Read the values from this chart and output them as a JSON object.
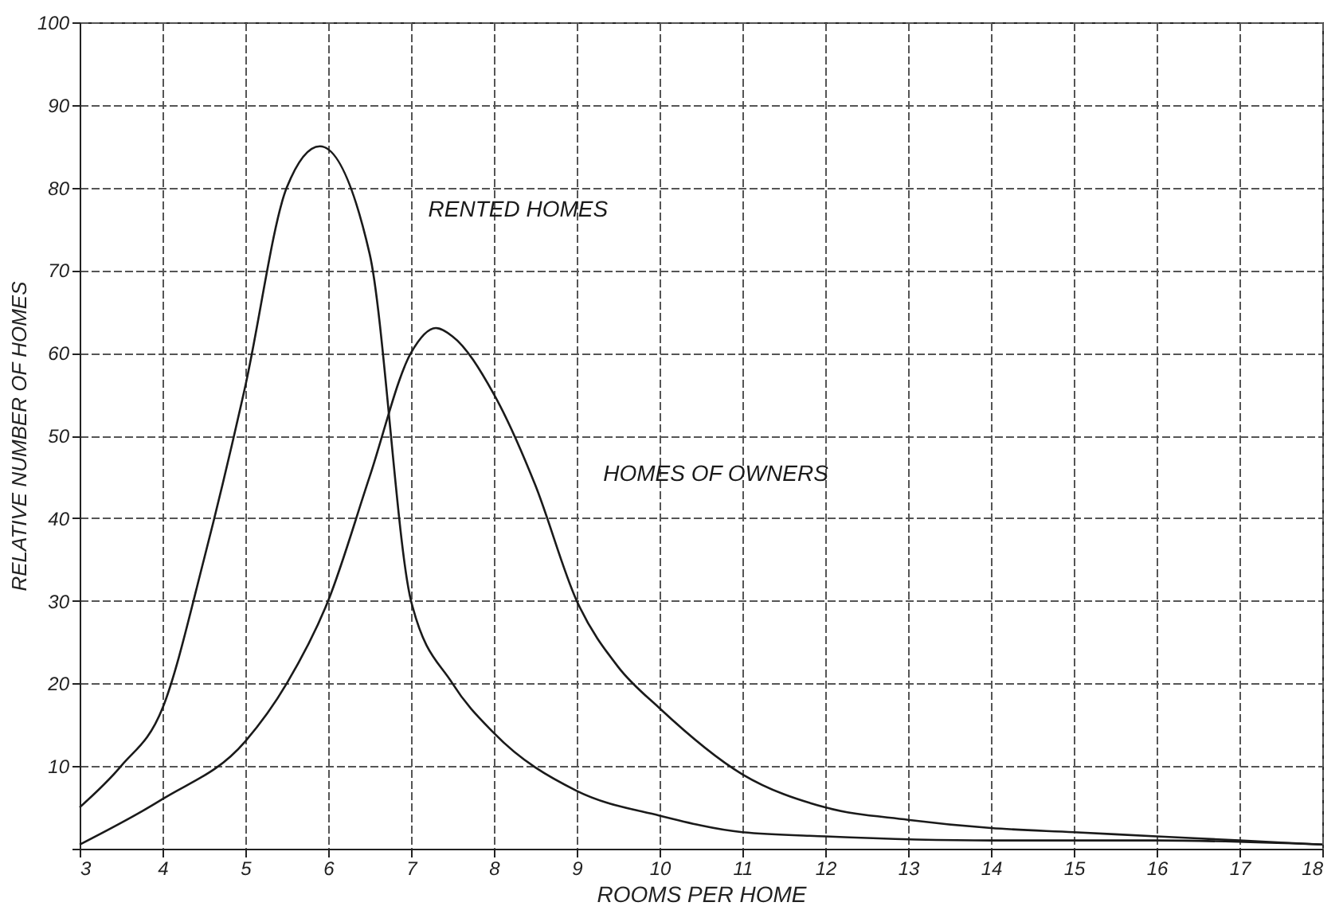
{
  "chart_data": {
    "type": "line",
    "xlabel": "ROOMS PER HOME",
    "ylabel": "RELATIVE NUMBER OF HOMES",
    "x": [
      3,
      3.5,
      4,
      4.5,
      5,
      5.5,
      5.9,
      6.5,
      7,
      7.5,
      8,
      9,
      10,
      11,
      12,
      14,
      16,
      18
    ],
    "series": [
      {
        "name": "RENTED HOMES",
        "color": "#1a1a1a",
        "values": [
          5,
          10,
          17,
          35,
          56,
          80,
          85,
          72,
          30,
          20,
          14,
          7,
          4,
          2,
          1.5,
          1,
          1,
          0.5
        ]
      },
      {
        "name": "HOMES OF OWNERS",
        "color": "#1a1a1a",
        "x": [
          3,
          4,
          5,
          5.5,
          6,
          6.5,
          7,
          7.3,
          7.5,
          8,
          8.5,
          9,
          9.5,
          10,
          11,
          12,
          13,
          14,
          15,
          16,
          17,
          18
        ],
        "values": [
          0.5,
          6,
          13,
          20,
          30,
          45,
          60,
          63,
          62,
          55,
          44,
          30,
          22,
          17,
          9,
          5,
          3.5,
          2.5,
          2,
          1.5,
          1,
          0.5
        ]
      }
    ],
    "xlim": [
      3,
      18
    ],
    "xticks": [
      3,
      4,
      5,
      6,
      7,
      8,
      9,
      10,
      11,
      12,
      13,
      14,
      15,
      16,
      17,
      18
    ],
    "ylim": [
      0,
      100
    ],
    "yticks": [
      {
        "value": 0,
        "label": null
      },
      10,
      20,
      30,
      40,
      50,
      60,
      70,
      80,
      90,
      100
    ],
    "grid": true,
    "legend": false,
    "marker": "none",
    "line_style": "solid"
  }
}
